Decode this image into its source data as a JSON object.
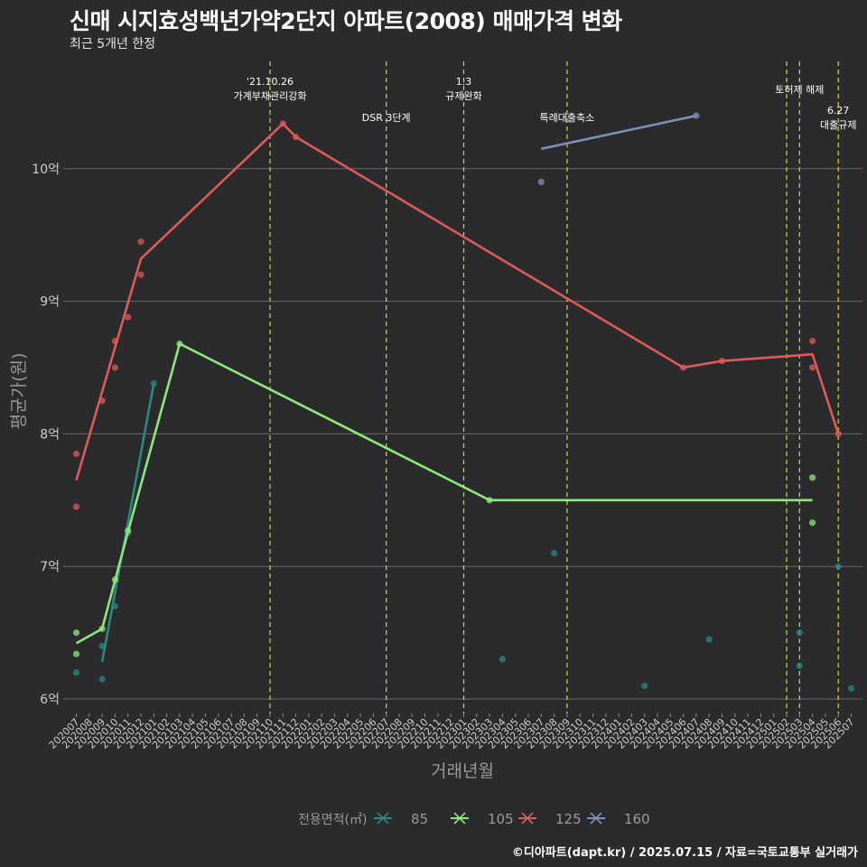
{
  "header": {
    "title": "신매 시지효성백년가약2단지 아파트(2008) 매매가격 변화",
    "subtitle": "최근 5개년 한정"
  },
  "footer": {
    "caption": "©디아파트(dapt.kr) / 2025.07.15 / 자료=국토교통부 실거래가"
  },
  "chart_data": {
    "type": "line",
    "xlabel": "거래년월",
    "ylabel": "평균가(원)",
    "categories": [
      "202007",
      "202008",
      "202009",
      "202010",
      "202011",
      "202012",
      "202101",
      "202102",
      "202103",
      "202104",
      "202105",
      "202106",
      "202107",
      "202108",
      "202109",
      "202110",
      "202111",
      "202112",
      "202201",
      "202202",
      "202203",
      "202204",
      "202205",
      "202206",
      "202207",
      "202208",
      "202209",
      "202210",
      "202211",
      "202212",
      "202301",
      "202302",
      "202303",
      "202304",
      "202305",
      "202306",
      "202307",
      "202308",
      "202309",
      "202310",
      "202311",
      "202312",
      "202401",
      "202402",
      "202403",
      "202404",
      "202405",
      "202406",
      "202407",
      "202408",
      "202409",
      "202410",
      "202411",
      "202412",
      "202501",
      "202502",
      "202503",
      "202504",
      "202505",
      "202506",
      "202507"
    ],
    "y_ticks": [
      {
        "value": 6,
        "label": "6억"
      },
      {
        "value": 7,
        "label": "7억"
      },
      {
        "value": 8,
        "label": "8억"
      },
      {
        "value": 9,
        "label": "9억"
      },
      {
        "value": 10,
        "label": "10억"
      }
    ],
    "ylim": [
      5.9,
      11.1
    ],
    "grid": true,
    "legend": {
      "title": "전용면적(㎡)",
      "position": "bottom"
    },
    "events": [
      {
        "x": "202110",
        "lines": [
          "'21.10.26",
          "가계부채관리강화"
        ],
        "row": 0
      },
      {
        "x": "202207",
        "lines": [
          "DSR 3단계"
        ],
        "row": 1
      },
      {
        "x": "202301",
        "lines": [
          "1.3",
          "규제완화"
        ],
        "row": 0
      },
      {
        "x": "202309",
        "lines": [
          "특례대출축소"
        ],
        "row": 1
      },
      {
        "x": "202502",
        "lines": [],
        "row": 0
      },
      {
        "x": "202503",
        "lines": [
          "토허제 해제"
        ],
        "row": 0
      },
      {
        "x": "202506",
        "lines": [
          "6.27",
          "대출규제"
        ],
        "row": 2
      }
    ],
    "series": [
      {
        "name": "85",
        "color": "#2a8a82",
        "line": [
          [
            "202009",
            6.28
          ],
          [
            "202101",
            8.38
          ]
        ],
        "points": [
          [
            "202007",
            6.2
          ],
          [
            "202009",
            6.15
          ],
          [
            "202009",
            6.4
          ],
          [
            "202010",
            6.7
          ],
          [
            "202011",
            7.25
          ],
          [
            "202101",
            8.38
          ],
          [
            "202308",
            7.1
          ],
          [
            "202304",
            6.3
          ],
          [
            "202403",
            6.1
          ],
          [
            "202408",
            6.45
          ],
          [
            "202503",
            6.5
          ],
          [
            "202503",
            6.25
          ],
          [
            "202506",
            7.0
          ],
          [
            "202507",
            6.08
          ]
        ]
      },
      {
        "name": "105",
        "color": "#8ee87c",
        "line": [
          [
            "202007",
            6.42
          ],
          [
            "202009",
            6.53
          ],
          [
            "202011",
            7.26
          ],
          [
            "202103",
            8.68
          ],
          [
            "202303",
            7.5
          ],
          [
            "202504",
            7.5
          ]
        ],
        "points": [
          [
            "202007",
            6.5
          ],
          [
            "202007",
            6.34
          ],
          [
            "202009",
            6.53
          ],
          [
            "202010",
            6.9
          ],
          [
            "202011",
            7.27
          ],
          [
            "202103",
            8.68
          ],
          [
            "202303",
            7.5
          ],
          [
            "202504",
            7.67
          ],
          [
            "202504",
            7.33
          ]
        ]
      },
      {
        "name": "125",
        "color": "#e05a5a",
        "line": [
          [
            "202007",
            7.65
          ],
          [
            "202012",
            9.32
          ],
          [
            "202111",
            10.34
          ],
          [
            "202112",
            10.24
          ],
          [
            "202406",
            8.5
          ],
          [
            "202409",
            8.55
          ],
          [
            "202504",
            8.6
          ],
          [
            "202506",
            8.0
          ]
        ],
        "points": [
          [
            "202007",
            7.85
          ],
          [
            "202007",
            7.45
          ],
          [
            "202009",
            8.25
          ],
          [
            "202010",
            8.5
          ],
          [
            "202010",
            8.7
          ],
          [
            "202011",
            8.88
          ],
          [
            "202012",
            9.2
          ],
          [
            "202012",
            9.45
          ],
          [
            "202111",
            10.34
          ],
          [
            "202112",
            10.24
          ],
          [
            "202406",
            8.5
          ],
          [
            "202409",
            8.55
          ],
          [
            "202504",
            8.7
          ],
          [
            "202504",
            8.5
          ],
          [
            "202506",
            8.0
          ]
        ]
      },
      {
        "name": "160",
        "color": "#7b93b8",
        "line": [
          [
            "202307",
            10.15
          ],
          [
            "202407",
            10.4
          ]
        ],
        "points": [
          [
            "202307",
            9.9
          ],
          [
            "202407",
            10.4
          ]
        ]
      }
    ]
  }
}
